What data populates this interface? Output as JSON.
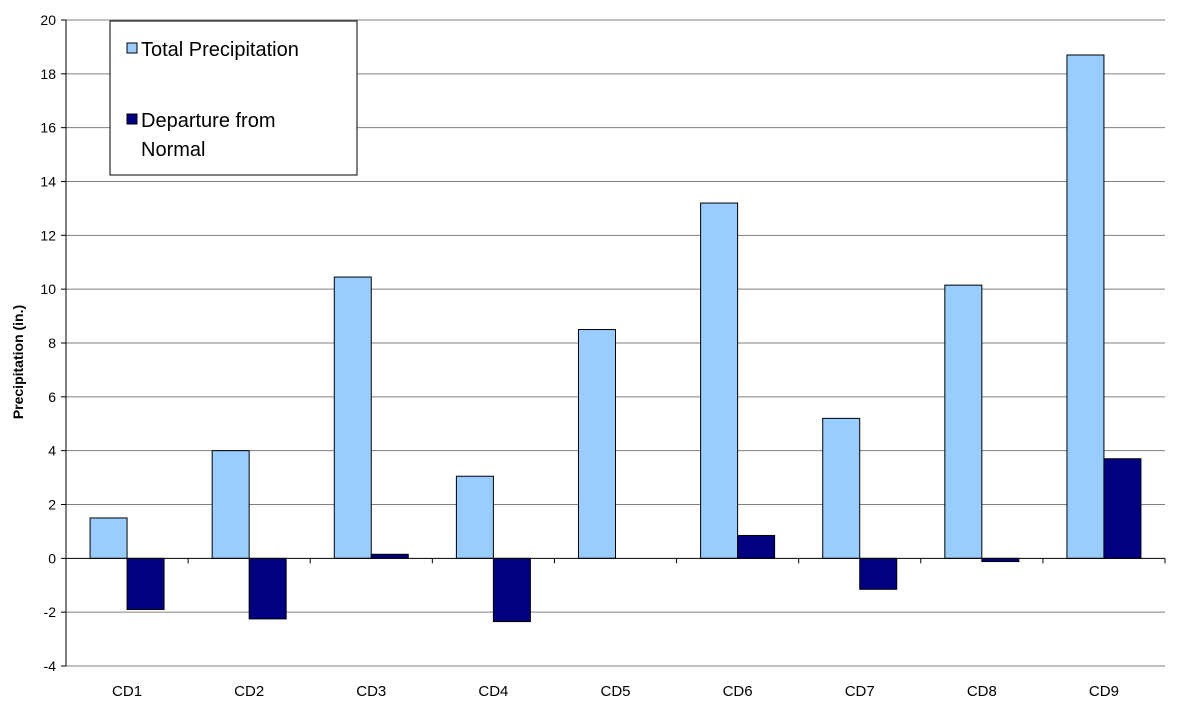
{
  "chart_data": {
    "type": "bar",
    "title": "",
    "xlabel": "",
    "ylabel": "Precipitation (in.)",
    "ylim": [
      -4,
      20
    ],
    "ytick_step": 2,
    "grid": true,
    "legend_position": "top-left",
    "categories": [
      "CD1",
      "CD2",
      "CD3",
      "CD4",
      "CD5",
      "CD6",
      "CD7",
      "CD8",
      "CD9"
    ],
    "series": [
      {
        "name": "Total Precipitation",
        "color": "#99ccff",
        "values": [
          1.5,
          4.0,
          10.45,
          3.05,
          8.5,
          13.2,
          5.2,
          10.15,
          18.7
        ]
      },
      {
        "name": "Departure from Normal",
        "color": "#000080",
        "values": [
          -1.9,
          -2.25,
          0.15,
          -2.35,
          0,
          0.85,
          -1.15,
          -0.12,
          3.7
        ]
      }
    ],
    "legend": {
      "total_label": "Total Precipitation",
      "departure_line1": "Departure from",
      "departure_line2": "Normal"
    }
  }
}
